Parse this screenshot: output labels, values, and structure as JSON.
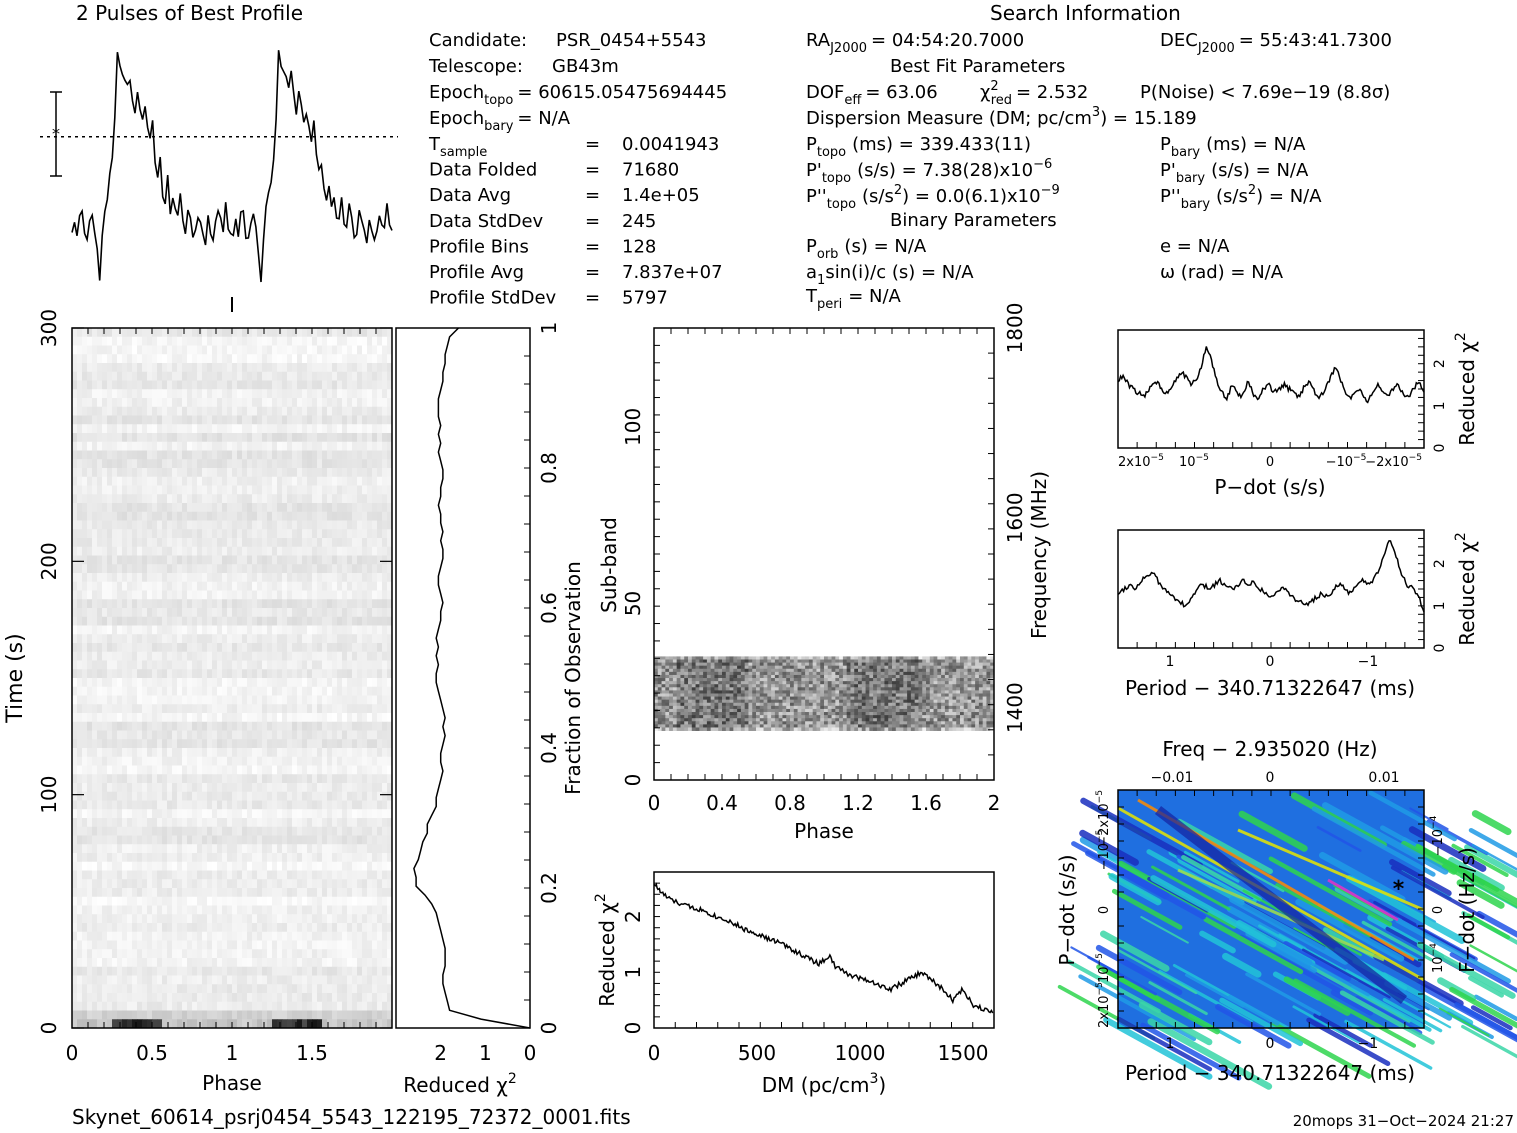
{
  "chart_data": {
    "type": "prepfold-diagnostic",
    "profile": {
      "title": "2 Pulses of Best Profile",
      "phase_cycles": 2,
      "shape": [
        0.22,
        0.26,
        0.2,
        0.3,
        0.28,
        0.18,
        0.2,
        0.24,
        0.3,
        0.22,
        0.12,
        0.02,
        0.2,
        0.3,
        0.34,
        0.44,
        0.52,
        0.68,
        0.94,
        0.9,
        0.88,
        0.82,
        0.8,
        0.86,
        0.76,
        0.72,
        0.78,
        0.74,
        0.68,
        0.7,
        0.62,
        0.58,
        0.64,
        0.52,
        0.44,
        0.5,
        0.38,
        0.34,
        0.42,
        0.3,
        0.36,
        0.28,
        0.26,
        0.34,
        0.24,
        0.22,
        0.3,
        0.26,
        0.18,
        0.22,
        0.28,
        0.24,
        0.2,
        0.18,
        0.26,
        0.22,
        0.2,
        0.24,
        0.3,
        0.26,
        0.22,
        0.3,
        0.24,
        0.22
      ]
    },
    "info": {
      "section_title": "Search Information",
      "candidate": {
        "label": "Candidate:",
        "value": "PSR_0454+5543"
      },
      "telescope": {
        "label": "Telescope:",
        "value": "GB43m"
      },
      "epoch_topo": {
        "label": "Epoch",
        "sub": "topo",
        "value": "= 60615.05475694445"
      },
      "epoch_bary": {
        "label": "Epoch",
        "sub": "bary",
        "value": "= N/A"
      },
      "stats": [
        {
          "label": "T",
          "sub": "sample",
          "value": "0.0041943"
        },
        {
          "label": "Data Folded",
          "sub": "",
          "value": "71680"
        },
        {
          "label": "Data Avg",
          "sub": "",
          "value": "1.4e+05"
        },
        {
          "label": "Data StdDev",
          "sub": "",
          "value": "245"
        },
        {
          "label": "Profile Bins",
          "sub": "",
          "value": "128"
        },
        {
          "label": "Profile Avg",
          "sub": "",
          "value": "7.837e+07"
        },
        {
          "label": "Profile StdDev",
          "sub": "",
          "value": "5797"
        }
      ],
      "ra": {
        "label": "RA",
        "sub": "J2000",
        "value": "= 04:54:20.7000"
      },
      "dec": {
        "label": "DEC",
        "sub": "J2000",
        "value": "= 55:43:41.7300"
      },
      "best_fit_title": "Best Fit Parameters",
      "dof": {
        "label": "DOF",
        "sub": "eff",
        "value": "= 63.06"
      },
      "chi2": {
        "label": "χ",
        "sup": "2",
        "sub": "red",
        "value": "= 2.532"
      },
      "pnoise": "P(Noise) < 7.69e−19   (8.8σ)",
      "dm_line": {
        "pre": "Dispersion Measure (DM; pc/cm",
        "sup": "3",
        "post": ") = 15.189"
      },
      "p_topo": {
        "label": "P",
        "sub": "topo",
        "value": "(ms) =  339.433(11)"
      },
      "pd_topo": {
        "label": "P'",
        "sub": "topo",
        "value": "(s/s) =  7.38(28)x10",
        "exp": "−6"
      },
      "pdd_topo": {
        "label": "P''",
        "sub": "topo",
        "value": "(s/s",
        "sup": "2",
        "value2": ") = 0.0(6.1)x10",
        "exp": "−9"
      },
      "p_bary": {
        "label": "P",
        "sub": "bary",
        "value": "(ms) = N/A"
      },
      "pd_bary": {
        "label": "P'",
        "sub": "bary",
        "value": "(s/s) = N/A"
      },
      "pdd_bary": {
        "label": "P''",
        "sub": "bary",
        "value": "(s/s",
        "sup": "2",
        "value2": ") = N/A"
      },
      "binary_title": "Binary Parameters",
      "porb": {
        "label": "P",
        "sub": "orb",
        "value": "(s) = N/A"
      },
      "a1": {
        "label": "a",
        "sub": "1",
        "value": "sin(i)/c (s) = N/A"
      },
      "tperi": {
        "label": "T",
        "sub": "peri",
        "value": "= N/A"
      },
      "ecc": "e = N/A",
      "omega": "ω (rad) = N/A"
    },
    "time_phase": {
      "xlabel": "Phase",
      "ylabel": "Time (s)",
      "xticks": [
        "0",
        "0.5",
        "1",
        "1.5"
      ],
      "yticks": [
        "0",
        "100",
        "200",
        "300"
      ],
      "xlim": [
        0,
        2
      ],
      "ylim": [
        0,
        300
      ]
    },
    "chi2_vs_time": {
      "xlabel": "Reduced χ",
      "xlabel_sup": "2",
      "xticks": [
        "2",
        "1",
        "0"
      ],
      "y2label": "Fraction of Observation",
      "y2ticks": [
        "0",
        "0.2",
        "0.4",
        "0.6",
        "0.8",
        "1"
      ],
      "values": [
        0.0,
        1.1,
        1.8,
        1.85,
        1.9,
        1.95,
        1.95,
        1.9,
        1.9,
        1.9,
        1.95,
        2.0,
        2.05,
        2.1,
        2.2,
        2.35,
        2.55,
        2.55,
        2.6,
        2.5,
        2.45,
        2.4,
        2.3,
        2.3,
        2.2,
        2.1,
        2.1,
        2.05,
        2.0,
        1.95,
        2.0,
        2.0,
        1.95,
        1.9,
        1.95,
        1.9,
        1.95,
        2.0,
        2.05,
        2.1,
        2.1,
        2.05,
        2.1,
        2.05,
        2.1,
        2.05,
        2.0,
        2.0,
        1.95,
        2.0,
        2.05,
        2.05,
        2.0,
        1.95,
        1.95,
        2.0,
        1.95,
        2.0,
        2.0,
        2.05,
        2.0,
        2.0,
        1.95,
        1.95,
        2.0,
        2.05,
        2.0,
        2.05,
        2.0,
        2.05,
        2.05,
        2.05,
        2.0,
        1.95,
        1.95,
        1.9,
        1.9,
        1.85,
        1.8,
        1.6
      ]
    },
    "subband": {
      "xlabel": "Phase",
      "ylabel": "Sub-band",
      "y2label": "Frequency (MHz)",
      "xticks": [
        "0",
        "0.4",
        "0.8",
        "1.2",
        "1.6",
        "2"
      ],
      "yticks": [
        "0",
        "50",
        "100"
      ],
      "y2ticks": [
        "1400",
        "1600",
        "1800"
      ],
      "xlim": [
        0,
        2
      ],
      "ylim": [
        0,
        128
      ],
      "data_band": [
        14,
        35
      ]
    },
    "dm_curve": {
      "xlabel": "DM (pc/cm",
      "xlabel_sup": "3",
      "xlabel_post": ")",
      "ylabel": "Reduced χ",
      "ylabel_sup": "2",
      "xticks": [
        "0",
        "500",
        "1000",
        "1500"
      ],
      "yticks": [
        "0",
        "1",
        "2"
      ],
      "xlim": [
        0,
        1650
      ],
      "ylim": [
        0,
        2.8
      ],
      "points": [
        [
          0,
          2.6
        ],
        [
          30,
          2.45
        ],
        [
          80,
          2.3
        ],
        [
          150,
          2.2
        ],
        [
          200,
          2.15
        ],
        [
          250,
          2.1
        ],
        [
          300,
          2.0
        ],
        [
          350,
          1.95
        ],
        [
          400,
          1.85
        ],
        [
          450,
          1.75
        ],
        [
          500,
          1.7
        ],
        [
          550,
          1.6
        ],
        [
          600,
          1.55
        ],
        [
          650,
          1.45
        ],
        [
          700,
          1.35
        ],
        [
          750,
          1.25
        ],
        [
          800,
          1.15
        ],
        [
          850,
          1.3
        ],
        [
          880,
          1.1
        ],
        [
          950,
          0.95
        ],
        [
          1000,
          0.9
        ],
        [
          1050,
          0.85
        ],
        [
          1100,
          0.75
        ],
        [
          1150,
          0.7
        ],
        [
          1200,
          0.8
        ],
        [
          1250,
          0.9
        ],
        [
          1300,
          1.0
        ],
        [
          1350,
          0.85
        ],
        [
          1400,
          0.7
        ],
        [
          1450,
          0.5
        ],
        [
          1500,
          0.7
        ],
        [
          1550,
          0.4
        ],
        [
          1600,
          0.35
        ],
        [
          1650,
          0.3
        ]
      ]
    },
    "pdot_curve": {
      "xlabel": "P−dot (s/s)",
      "ylabel": "Reduced χ",
      "ylabel_sup": "2",
      "xticks": [
        "2x10",
        "10",
        "0",
        "−10",
        "−2x10"
      ],
      "xtick_exp": "−5",
      "yticks": [
        "0",
        "1",
        "2"
      ],
      "ylim": [
        0,
        2.8
      ],
      "values": [
        1.6,
        1.7,
        1.5,
        1.4,
        1.3,
        1.2,
        1.4,
        1.6,
        1.5,
        1.3,
        1.4,
        1.6,
        1.8,
        1.7,
        1.5,
        1.6,
        1.9,
        2.4,
        2.1,
        1.6,
        1.3,
        1.2,
        1.5,
        1.3,
        1.2,
        1.6,
        1.3,
        1.1,
        1.4,
        1.5,
        1.3,
        1.4,
        1.5,
        1.4,
        1.3,
        1.2,
        1.5,
        1.6,
        1.3,
        1.2,
        1.4,
        1.7,
        1.9,
        1.6,
        1.3,
        1.2,
        1.4,
        1.3,
        1.1,
        1.3,
        1.5,
        1.3,
        1.2,
        1.4,
        1.5,
        1.3,
        1.2,
        1.4,
        1.6,
        1.3
      ]
    },
    "period_curve": {
      "xlabel": "Period − 340.71322647 (ms)",
      "ylabel": "Reduced χ",
      "ylabel_sup": "2",
      "xticks": [
        "1",
        "0",
        "−1"
      ],
      "yticks": [
        "0",
        "1",
        "2"
      ],
      "ylim": [
        0,
        2.8
      ],
      "values": [
        1.3,
        1.4,
        1.5,
        1.4,
        1.6,
        1.7,
        1.8,
        1.6,
        1.4,
        1.3,
        1.2,
        1.1,
        0.95,
        1.2,
        1.4,
        1.5,
        1.4,
        1.5,
        1.6,
        1.5,
        1.4,
        1.5,
        1.6,
        1.5,
        1.6,
        1.4,
        1.3,
        1.2,
        1.3,
        1.5,
        1.3,
        1.2,
        1.1,
        1.0,
        1.1,
        1.2,
        1.3,
        1.2,
        1.4,
        1.5,
        1.4,
        1.3,
        1.5,
        1.6,
        1.5,
        1.6,
        1.8,
        2.2,
        2.6,
        2.2,
        1.8,
        1.5,
        1.4,
        1.2,
        0.9
      ]
    },
    "pp_plane": {
      "title": "Freq − 2.935020 (Hz)",
      "xlabel": "Period − 340.71322647 (ms)",
      "ylabel": "P−dot (s/s)",
      "y2label": "F−dot (Hz/s)",
      "xticks": [
        "1",
        "0",
        "−1"
      ],
      "topticks": [
        "−0.01",
        "0",
        "0.01"
      ],
      "yticks": [
        "2x10",
        "10",
        "0",
        "−10",
        "−2x10"
      ],
      "ytick_exp": "−5",
      "y2ticks": [
        "10",
        "0",
        "−10"
      ],
      "y2tick_exp": "−4",
      "best_marker": [
        -1.25,
        3.5e-06
      ]
    },
    "footer_left": "Skynet_60614_psrj0454_5543_122195_72372_0001.fits",
    "footer_right": "20mops 31−Oct−2024 21:27"
  }
}
